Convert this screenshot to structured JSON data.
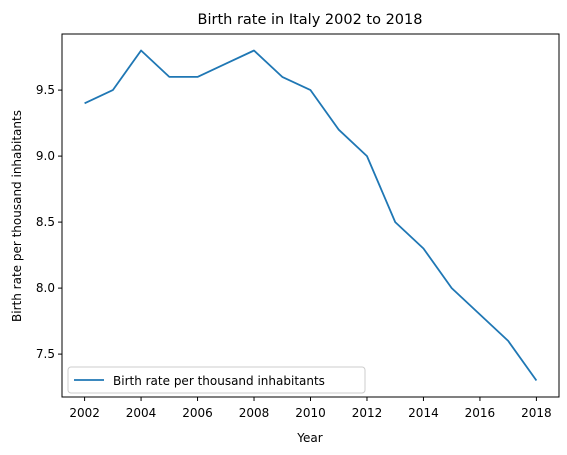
{
  "chart_data": {
    "type": "line",
    "title": "Birth rate in Italy 2002 to 2018",
    "xlabel": "Year",
    "ylabel": "Birth rate per thousand inhabitants",
    "x": [
      2002,
      2003,
      2004,
      2005,
      2006,
      2007,
      2008,
      2009,
      2010,
      2011,
      2012,
      2013,
      2014,
      2015,
      2016,
      2017,
      2018
    ],
    "series": [
      {
        "name": "Birth rate per thousand inhabitants",
        "color": "#1f77b4",
        "values": [
          9.4,
          9.5,
          9.8,
          9.6,
          9.6,
          9.7,
          9.8,
          9.6,
          9.5,
          9.2,
          9.0,
          8.5,
          8.3,
          8.0,
          7.8,
          7.6,
          7.3
        ]
      }
    ],
    "xlim": [
      2001.2,
      2018.8
    ],
    "ylim": [
      7.175,
      9.925
    ],
    "xticks": [
      2002,
      2004,
      2006,
      2008,
      2010,
      2012,
      2014,
      2016,
      2018
    ],
    "yticks": [
      7.5,
      8.0,
      8.5,
      9.0,
      9.5
    ],
    "ytick_labels": [
      "7.5",
      "8.0",
      "8.5",
      "9.0",
      "9.5"
    ],
    "grid": false,
    "legend_position": "lower-left"
  }
}
